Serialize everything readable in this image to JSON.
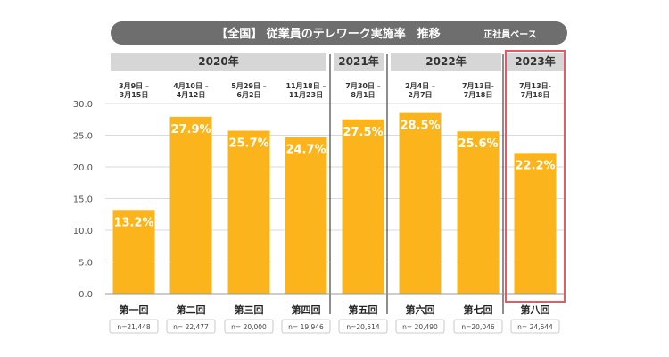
{
  "header": {
    "title": "【全国】 従業員のテレワーク実施率　推移",
    "basis": "正社員ベース"
  },
  "colors": {
    "bar": "#FBB41B",
    "header_bg": "#6E6E6E",
    "year_band_bg": "#D6D6D6",
    "highlight_border": "#E65A64"
  },
  "year_groups": [
    {
      "label": "2020年"
    },
    {
      "label": "2021年"
    },
    {
      "label": "2022年"
    },
    {
      "label": "2023年"
    }
  ],
  "chart_data": {
    "type": "bar",
    "categories": [
      "第一回",
      "第二回",
      "第三回",
      "第四回",
      "第五回",
      "第六回",
      "第七回",
      "第八回"
    ],
    "values": [
      13.2,
      27.9,
      25.7,
      24.7,
      27.5,
      28.5,
      25.6,
      22.2
    ],
    "value_labels": [
      "13.2%",
      "27.9%",
      "25.7%",
      "24.7%",
      "27.5%",
      "28.5%",
      "25.6%",
      "22.2%"
    ],
    "periods": [
      [
        "3月9日 –",
        "3月15日"
      ],
      [
        "4月10日 –",
        "4月12日"
      ],
      [
        "5月29日 –",
        "6月2日"
      ],
      [
        "11月18日 –",
        "11月23日"
      ],
      [
        "7月30日 –",
        "8月1日"
      ],
      [
        "2月4日 –",
        "2月7日"
      ],
      [
        "7月13日-",
        "7月18日"
      ],
      [
        "7月13日-",
        "7月18日"
      ]
    ],
    "sample_sizes": [
      "n=21,448",
      "n= 22,477",
      "n= 20,000",
      "n= 19,946",
      "n=20,514",
      "n= 20,490",
      "n=20,046",
      "n= 24,644"
    ],
    "y_ticks": [
      "0.0",
      "5.0",
      "10.0",
      "15.0",
      "20.0",
      "25.0",
      "30.0"
    ],
    "ylim": [
      0,
      30
    ],
    "grid": true,
    "highlighted_category": "第八回"
  }
}
